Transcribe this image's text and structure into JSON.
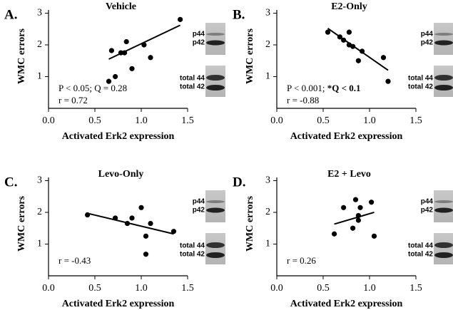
{
  "chart_data": [
    {
      "type": "scatter",
      "panel_label": "A.",
      "title": "Vehicle",
      "x_label": "Activated Erk2 expression",
      "y_label": "WMC errors",
      "x": [
        0.65,
        0.68,
        0.72,
        0.78,
        0.82,
        0.84,
        0.9,
        1.03,
        1.1,
        1.42
      ],
      "values": [
        0.85,
        1.82,
        1.0,
        1.75,
        1.75,
        2.1,
        1.25,
        2.0,
        1.6,
        2.8
      ],
      "trend_x": [
        0.65,
        1.42
      ],
      "trend_y": [
        1.55,
        2.62
      ],
      "xlim": [
        0,
        1.5
      ],
      "ylim": [
        0,
        3.1
      ],
      "xticks": [
        {
          "value": 0,
          "label": "0.0"
        },
        0.5,
        {
          "value": 1,
          "label": "1.0"
        },
        1.5
      ],
      "yticks": [
        1,
        2,
        3
      ],
      "stats_note": "P < 0.05; Q = 0.28",
      "r_label": "r = 0.72",
      "blot_labels": [
        "p44",
        "p42"
      ],
      "total_labels": [
        "total 44",
        "total 42"
      ],
      "color": "#000000"
    },
    {
      "type": "scatter",
      "panel_label": "B.",
      "title": "E2-Only",
      "x_label": "Activated Erk2 expression",
      "y_label": "WMC errors",
      "x": [
        0.55,
        0.68,
        0.72,
        0.78,
        0.78,
        0.82,
        0.88,
        0.92,
        1.15,
        1.2
      ],
      "values": [
        2.4,
        2.25,
        2.15,
        2.4,
        2.0,
        1.95,
        1.5,
        1.8,
        1.6,
        0.85
      ],
      "trend_x": [
        0.55,
        1.2
      ],
      "trend_y": [
        2.52,
        1.2
      ],
      "xlim": [
        0,
        1.5
      ],
      "ylim": [
        0,
        3.1
      ],
      "xticks": [
        {
          "value": 0,
          "label": "0.0"
        },
        0.5,
        {
          "value": 1,
          "label": "1.0"
        },
        1.5
      ],
      "yticks": [
        1,
        2,
        3
      ],
      "stats_note": "P < 0.001; ",
      "stats_note_bold": "*Q < 0.1",
      "r_label": "r = -0.88",
      "blot_labels": [
        "p44",
        "p42"
      ],
      "total_labels": [
        "total 44",
        "total 42"
      ],
      "color": "#000000"
    },
    {
      "type": "scatter",
      "panel_label": "C.",
      "title": "Levo-Only",
      "x_label": "Activated Erk2 expression",
      "y_label": "WMC errors",
      "x": [
        0.42,
        0.72,
        0.85,
        0.9,
        1.0,
        1.05,
        1.05,
        1.1,
        1.35
      ],
      "values": [
        1.92,
        1.82,
        1.65,
        1.82,
        2.15,
        1.25,
        0.68,
        1.65,
        1.4
      ],
      "trend_x": [
        0.42,
        1.35
      ],
      "trend_y": [
        1.97,
        1.32
      ],
      "xlim": [
        0,
        1.5
      ],
      "ylim": [
        0,
        3.1
      ],
      "xticks": [
        {
          "value": 0,
          "label": "0.0"
        },
        0.5,
        {
          "value": 1,
          "label": "1.0"
        },
        1.5
      ],
      "yticks": [
        1,
        2,
        3
      ],
      "r_label": "r = -0.43",
      "blot_labels": [
        "p44",
        "p42"
      ],
      "total_labels": [
        "total 44",
        "total 42"
      ],
      "color": "#000000"
    },
    {
      "type": "scatter",
      "panel_label": "D.",
      "title": "E2 + Levo",
      "x_label": "Activated Erk2 expression",
      "y_label": "WMC errors",
      "x": [
        0.62,
        0.72,
        0.82,
        0.85,
        0.88,
        0.88,
        0.9,
        1.02,
        1.05
      ],
      "values": [
        1.32,
        2.15,
        1.5,
        2.4,
        1.75,
        1.9,
        2.15,
        2.32,
        1.25
      ],
      "trend_x": [
        0.62,
        1.05
      ],
      "trend_y": [
        1.63,
        2.0
      ],
      "xlim": [
        0,
        1.5
      ],
      "ylim": [
        0,
        3.1
      ],
      "xticks": [
        {
          "value": 0,
          "label": "0.0"
        },
        0.5,
        {
          "value": 1,
          "label": "1.0"
        },
        1.5
      ],
      "yticks": [
        1,
        2,
        3
      ],
      "r_label": "r = 0.26",
      "blot_labels": [
        "p44",
        "p42"
      ],
      "total_labels": [
        "total 44",
        "total 42"
      ],
      "color": "#000000"
    }
  ]
}
